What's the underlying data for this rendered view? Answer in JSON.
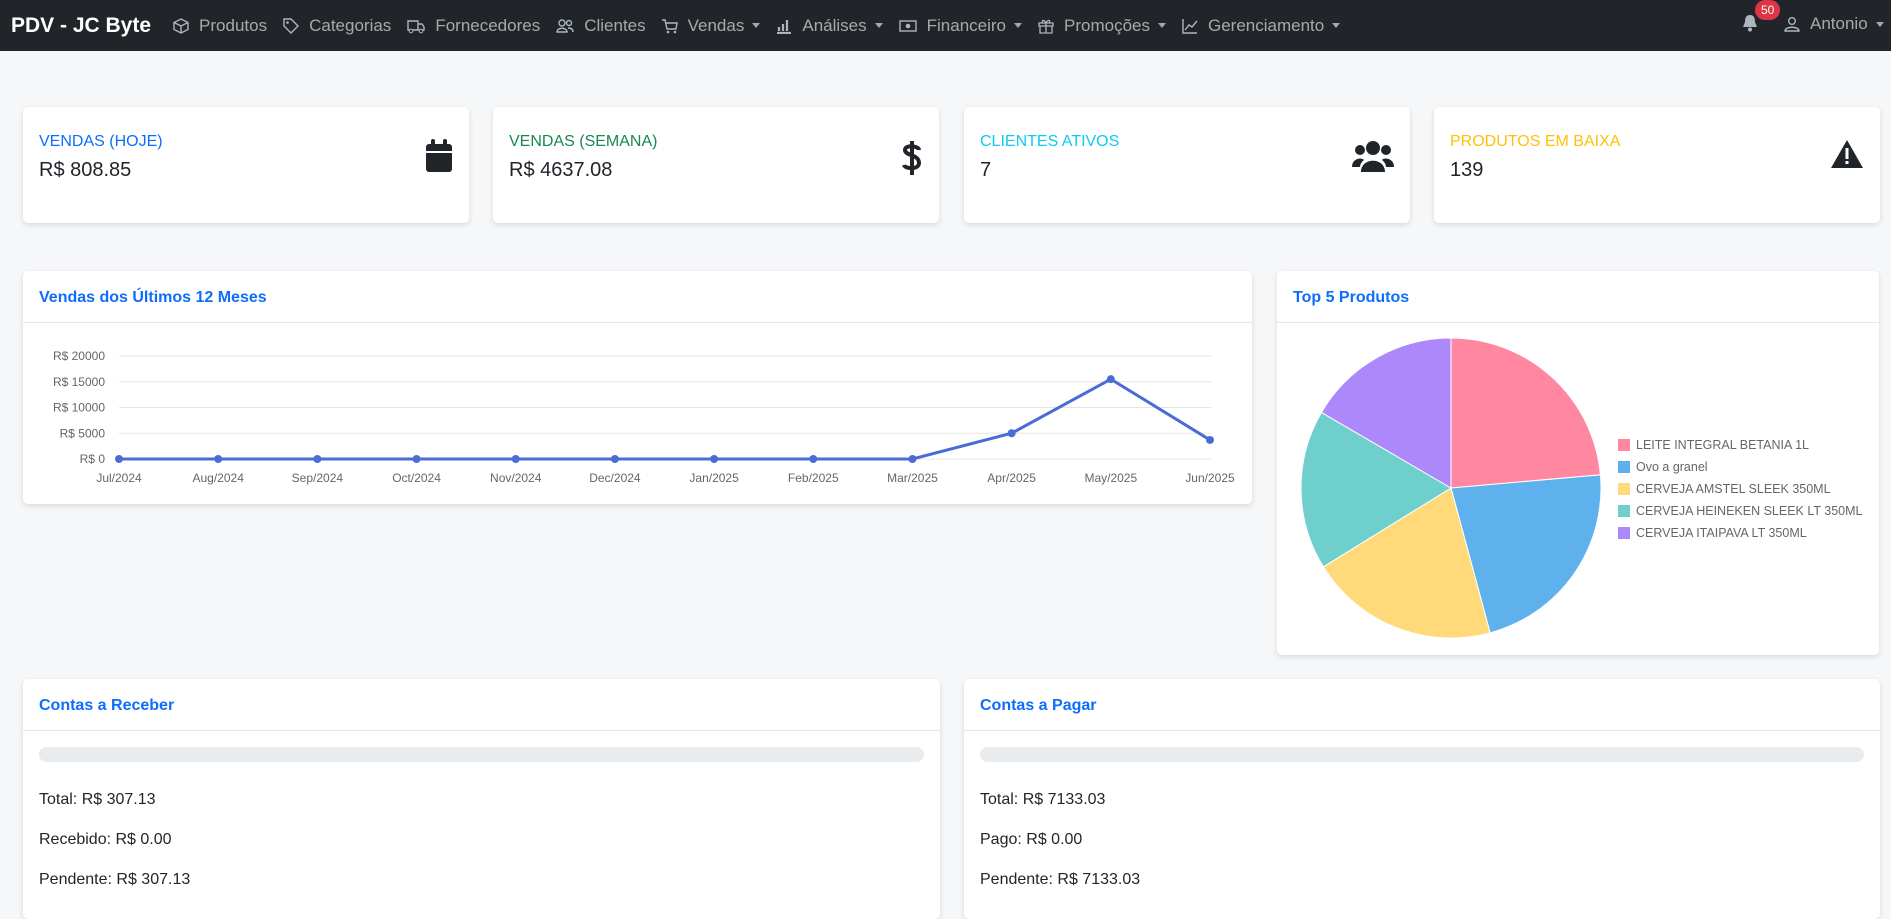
{
  "navbar": {
    "brand": "PDV - JC Byte",
    "items": [
      "Produtos",
      "Categorias",
      "Fornecedores",
      "Clientes",
      "Vendas",
      "Análises",
      "Financeiro",
      "Promoções",
      "Gerenciamento"
    ],
    "notifications": "50",
    "user": "Antonio"
  },
  "cards": [
    {
      "title": "VENDAS (HOJE)",
      "value": "R$ 808.85"
    },
    {
      "title": "VENDAS (SEMANA)",
      "value": "R$ 4637.08"
    },
    {
      "title": "CLIENTES ATIVOS",
      "value": "7"
    },
    {
      "title": "PRODUTOS EM BAIXA",
      "value": "139"
    }
  ],
  "chart_data": [
    {
      "type": "line",
      "title": "Vendas dos Últimos 12 Meses",
      "categories": [
        "Jul/2024",
        "Aug/2024",
        "Sep/2024",
        "Oct/2024",
        "Nov/2024",
        "Dec/2024",
        "Jan/2025",
        "Feb/2025",
        "Mar/2025",
        "Apr/2025",
        "May/2025",
        "Jun/2025"
      ],
      "values": [
        0,
        0,
        0,
        0,
        0,
        0,
        0,
        0,
        0,
        5000,
        15500,
        3700
      ],
      "color": "#4a6cd4",
      "grid": true,
      "ylim": [
        0,
        20000
      ],
      "yticks": [
        {
          "value": 0,
          "label": "R$ 0"
        },
        {
          "value": 5000,
          "label": "R$ 5000"
        },
        {
          "value": 10000,
          "label": "R$ 10000"
        },
        {
          "value": 15000,
          "label": "R$ 15000"
        },
        {
          "value": 20000,
          "label": "R$ 20000"
        }
      ]
    },
    {
      "type": "pie",
      "title": "Top 5 Produtos",
      "categories": [
        "LEITE INTEGRAL BETANIA 1L",
        "Ovo a granel",
        "CERVEJA AMSTEL SLEEK 350ML",
        "CERVEJA HEINEKEN SLEEK LT 350ML",
        "CERVEJA ITAIPAVA LT 350ML"
      ],
      "values": [
        23.6,
        22.2,
        20.4,
        17.2,
        16.6
      ],
      "colors": [
        "#ff87a0",
        "#5fb1ee",
        "#ffd97a",
        "#6fcfcd",
        "#ac88fb"
      ],
      "legend": "right"
    }
  ],
  "accounts": [
    {
      "title": "Contas a Receber",
      "lines": [
        {
          "label": "Total:",
          "value": "R$ 307.13"
        },
        {
          "label": "Recebido:",
          "value": "R$ 0.00"
        },
        {
          "label": "Pendente:",
          "value": "R$ 307.13"
        }
      ]
    },
    {
      "title": "Contas a Pagar",
      "lines": [
        {
          "label": "Total:",
          "value": "R$ 7133.03"
        },
        {
          "label": "Pago:",
          "value": "R$ 0.00"
        },
        {
          "label": "Pendente:",
          "value": "R$ 7133.03"
        }
      ]
    }
  ]
}
